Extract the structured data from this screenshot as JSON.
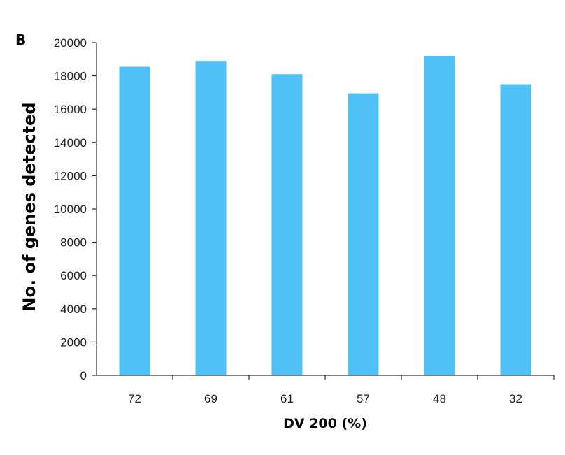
{
  "panel_label": "B",
  "colors": {
    "bar": "#4FC1F7",
    "axis": "#000000",
    "text": "#222222"
  },
  "chart_data": {
    "type": "bar",
    "categories": [
      "72",
      "69",
      "61",
      "57",
      "48",
      "32"
    ],
    "values": [
      18550,
      18900,
      18100,
      16950,
      19200,
      17500
    ],
    "xlabel": "DV 200 (%)",
    "ylabel": "No. of genes detected",
    "ylim": [
      0,
      20000
    ],
    "yticks": [
      0,
      2000,
      4000,
      6000,
      8000,
      10000,
      12000,
      14000,
      16000,
      18000,
      20000
    ],
    "grid": false,
    "legend": "none"
  }
}
